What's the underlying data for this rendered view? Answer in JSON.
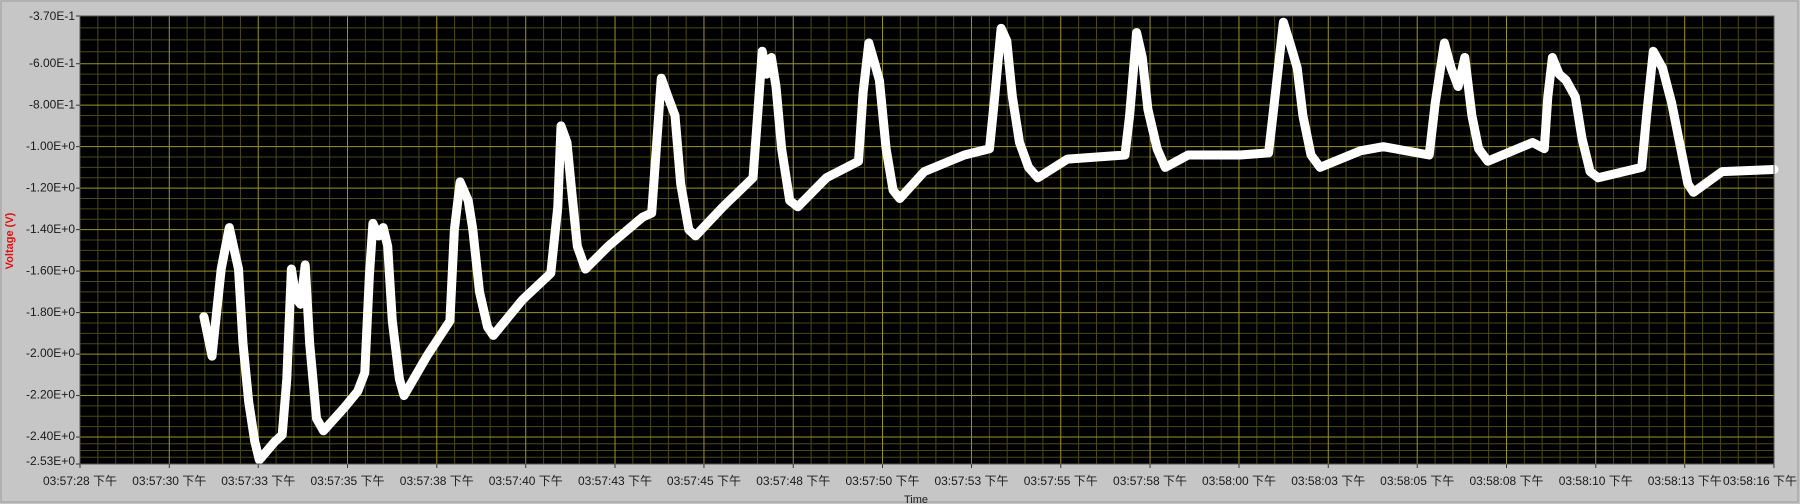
{
  "chart_data": {
    "type": "line",
    "x_label": "Time",
    "y_label": "Voltage (V)",
    "color": "#ffffff",
    "background": "#000000",
    "grid": true,
    "minor_grid": true,
    "grid_color": "#9a9426",
    "minor_grid_color": "#4a4816",
    "xlim": [
      57448,
      57496
    ],
    "ylim": [
      -2.53,
      -0.37
    ],
    "yticks": [
      {
        "value": -0.37,
        "label": "-3.70E-1"
      },
      {
        "value": -0.6,
        "label": "-6.00E-1"
      },
      {
        "value": -0.8,
        "label": "-8.00E-1"
      },
      {
        "value": -1.0,
        "label": "-1.00E+0"
      },
      {
        "value": -1.2,
        "label": "-1.20E+0"
      },
      {
        "value": -1.4,
        "label": "-1.40E+0"
      },
      {
        "value": -1.6,
        "label": "-1.60E+0"
      },
      {
        "value": -1.8,
        "label": "-1.80E+0"
      },
      {
        "value": -2.0,
        "label": "-2.00E+0"
      },
      {
        "value": -2.2,
        "label": "-2.20E+0"
      },
      {
        "value": -2.4,
        "label": "-2.40E+0"
      },
      {
        "value": -2.53,
        "label": "-2.53E+0"
      }
    ],
    "xticks": [
      {
        "value": 57448,
        "label": "03:57:28 下午"
      },
      {
        "value": 57450.53,
        "label": "03:57:30 下午"
      },
      {
        "value": 57453.05,
        "label": "03:57:33 下午"
      },
      {
        "value": 57455.58,
        "label": "03:57:35 下午"
      },
      {
        "value": 57458.11,
        "label": "03:57:38 下午"
      },
      {
        "value": 57460.63,
        "label": "03:57:40 下午"
      },
      {
        "value": 57463.16,
        "label": "03:57:43 下午"
      },
      {
        "value": 57465.68,
        "label": "03:57:45 下午"
      },
      {
        "value": 57468.21,
        "label": "03:57:48 下午"
      },
      {
        "value": 57470.74,
        "label": "03:57:50 下午"
      },
      {
        "value": 57473.26,
        "label": "03:57:53 下午"
      },
      {
        "value": 57475.79,
        "label": "03:57:55 下午"
      },
      {
        "value": 57478.32,
        "label": "03:57:58 下午"
      },
      {
        "value": 57480.84,
        "label": "03:58:00 下午"
      },
      {
        "value": 57483.37,
        "label": "03:58:03 下午"
      },
      {
        "value": 57485.89,
        "label": "03:58:05 下午"
      },
      {
        "value": 57488.42,
        "label": "03:58:08 下午"
      },
      {
        "value": 57490.95,
        "label": "03:58:10 下午"
      },
      {
        "value": 57493.47,
        "label": "03:58:13 下午"
      },
      {
        "value": 57496,
        "label": "03:58:16 下午"
      }
    ],
    "x": [
      57451.51,
      57451.74,
      57452.0,
      57452.23,
      57452.49,
      57452.62,
      57452.78,
      57452.95,
      57453.08,
      57453.53,
      57453.73,
      57453.86,
      57453.99,
      57454.12,
      57454.25,
      57454.38,
      57454.51,
      57454.7,
      57454.9,
      57455.48,
      57455.87,
      57456.07,
      57456.2,
      57456.3,
      57456.46,
      57456.59,
      57456.72,
      57456.85,
      57457.05,
      57457.18,
      57457.83,
      57458.48,
      57458.61,
      57458.77,
      57459.0,
      57459.13,
      57459.32,
      57459.55,
      57459.71,
      57460.53,
      57461.34,
      57461.54,
      57461.63,
      57461.8,
      57461.93,
      57462.09,
      57462.32,
      57462.97,
      57463.94,
      57464.2,
      57464.33,
      57464.47,
      57464.66,
      57464.86,
      57465.02,
      57465.25,
      57465.44,
      57466.22,
      57467.07,
      57467.2,
      57467.33,
      57467.46,
      57467.59,
      57467.72,
      57467.88,
      57468.11,
      57468.34,
      57469.15,
      57470.06,
      57470.19,
      57470.35,
      57470.52,
      57470.65,
      57470.84,
      57471.04,
      57471.23,
      57471.92,
      57473.06,
      57473.77,
      57473.9,
      57474.1,
      57474.26,
      57474.42,
      57474.62,
      57474.88,
      57475.14,
      57475.98,
      57477.61,
      57477.74,
      57477.94,
      57478.1,
      57478.26,
      57478.52,
      57478.75,
      57479.4,
      57480.87,
      57481.68,
      57481.84,
      57482.1,
      57482.3,
      57482.49,
      57482.65,
      57482.88,
      57483.14,
      57484.28,
      57484.93,
      57486.23,
      57486.4,
      57486.66,
      57486.85,
      57487.05,
      57487.24,
      57487.44,
      57487.63,
      57487.89,
      57489.16,
      57489.49,
      57489.59,
      57489.72,
      57489.91,
      57490.11,
      57490.37,
      57490.56,
      57490.79,
      57491.02,
      57492.25,
      57492.39,
      57492.58,
      57492.84,
      57493.1,
      57493.3,
      57493.56,
      57493.72,
      57494.53,
      57496.0
    ],
    "values": [
      -1.82,
      -2.01,
      -1.59,
      -1.39,
      -1.59,
      -1.95,
      -2.23,
      -2.42,
      -2.51,
      -2.42,
      -2.39,
      -2.12,
      -1.59,
      -1.73,
      -1.76,
      -1.57,
      -1.95,
      -2.31,
      -2.37,
      -2.26,
      -2.18,
      -2.09,
      -1.62,
      -1.37,
      -1.43,
      -1.39,
      -1.48,
      -1.84,
      -2.12,
      -2.2,
      -2.01,
      -1.84,
      -1.4,
      -1.17,
      -1.26,
      -1.4,
      -1.7,
      -1.87,
      -1.91,
      -1.74,
      -1.61,
      -1.29,
      -0.9,
      -0.98,
      -1.21,
      -1.48,
      -1.59,
      -1.48,
      -1.34,
      -1.32,
      -1.01,
      -0.67,
      -0.76,
      -0.85,
      -1.18,
      -1.4,
      -1.43,
      -1.29,
      -1.15,
      -0.85,
      -0.54,
      -0.65,
      -0.57,
      -0.71,
      -1.01,
      -1.26,
      -1.29,
      -1.15,
      -1.07,
      -0.74,
      -0.5,
      -0.6,
      -0.68,
      -1.01,
      -1.21,
      -1.25,
      -1.12,
      -1.04,
      -1.01,
      -0.79,
      -0.43,
      -0.49,
      -0.76,
      -0.98,
      -1.1,
      -1.15,
      -1.06,
      -1.04,
      -0.85,
      -0.45,
      -0.57,
      -0.82,
      -1.01,
      -1.1,
      -1.04,
      -1.04,
      -1.03,
      -0.79,
      -0.4,
      -0.51,
      -0.62,
      -0.85,
      -1.04,
      -1.1,
      -1.02,
      -1.0,
      -1.04,
      -0.79,
      -0.5,
      -0.62,
      -0.71,
      -0.57,
      -0.85,
      -1.01,
      -1.07,
      -0.98,
      -1.01,
      -0.76,
      -0.57,
      -0.65,
      -0.68,
      -0.76,
      -0.96,
      -1.12,
      -1.15,
      -1.1,
      -0.85,
      -0.54,
      -0.62,
      -0.79,
      -0.96,
      -1.18,
      -1.22,
      -1.12,
      -1.11
    ]
  }
}
